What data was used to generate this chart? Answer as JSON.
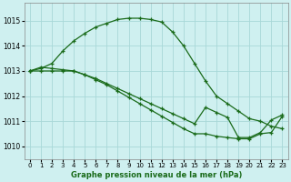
{
  "xlabel": "Graphe pression niveau de la mer (hPa)",
  "xlim": [
    -0.5,
    23.5
  ],
  "ylim": [
    1009.5,
    1015.7
  ],
  "yticks": [
    1010,
    1011,
    1012,
    1013,
    1014,
    1015
  ],
  "xticks": [
    0,
    1,
    2,
    3,
    4,
    5,
    6,
    7,
    8,
    9,
    10,
    11,
    12,
    13,
    14,
    15,
    16,
    17,
    18,
    19,
    20,
    21,
    22,
    23
  ],
  "bg_color": "#cff0f0",
  "grid_color": "#a8d8d8",
  "line_color": "#1a6b1a",
  "line2_x": [
    0,
    1,
    2,
    3,
    4,
    5,
    6,
    7,
    8,
    9,
    10,
    11,
    12,
    13,
    14,
    15,
    16,
    17,
    18,
    19,
    20,
    21,
    22,
    23
  ],
  "line2_y": [
    1013.0,
    1013.1,
    1013.3,
    1013.8,
    1014.2,
    1014.5,
    1014.75,
    1014.9,
    1015.05,
    1015.1,
    1015.1,
    1015.05,
    1014.95,
    1014.55,
    1014.0,
    1013.3,
    1012.6,
    1012.0,
    1011.7,
    1011.4,
    1011.1,
    1011.0,
    1010.8,
    1010.7
  ],
  "line1_x": [
    0,
    1,
    2,
    3,
    4,
    5,
    6,
    7,
    8,
    9,
    10,
    11,
    12,
    13,
    14,
    15,
    16,
    17,
    18,
    19,
    20,
    21,
    22,
    23
  ],
  "line1_y": [
    1013.0,
    1013.15,
    1013.1,
    1013.05,
    1013.0,
    1012.85,
    1012.7,
    1012.5,
    1012.3,
    1012.1,
    1011.9,
    1011.7,
    1011.5,
    1011.3,
    1011.1,
    1010.9,
    1011.55,
    1011.35,
    1011.15,
    1010.35,
    1010.35,
    1010.55,
    1011.05,
    1011.25
  ],
  "line3_x": [
    0,
    1,
    2,
    3,
    4,
    5,
    6,
    7,
    8,
    9,
    10,
    11,
    12,
    13,
    14,
    15,
    16,
    17,
    18,
    19,
    20,
    21,
    22,
    23
  ],
  "line3_y": [
    1013.0,
    1013.0,
    1013.0,
    1013.0,
    1013.0,
    1012.85,
    1012.65,
    1012.45,
    1012.2,
    1011.95,
    1011.7,
    1011.45,
    1011.2,
    1010.95,
    1010.7,
    1010.5,
    1010.5,
    1010.4,
    1010.35,
    1010.3,
    1010.3,
    1010.5,
    1010.55,
    1011.2
  ]
}
